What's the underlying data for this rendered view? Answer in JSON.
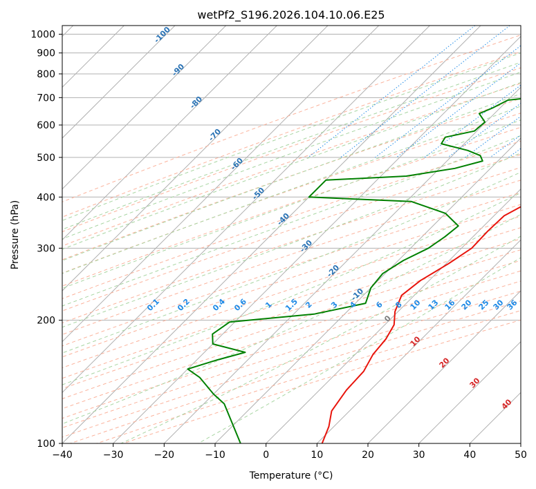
{
  "chart_data": {
    "type": "line",
    "subtype": "skew-t log-p diagram",
    "title": "wetPf2_S196.2026.104.10.06.E25",
    "xlabel": "Temperature (°C)",
    "ylabel": "Pressure (hPa)",
    "xlim": [
      -40,
      50
    ],
    "ylim": [
      1050,
      100
    ],
    "x_ticks": [
      -40,
      -30,
      -20,
      -10,
      0,
      10,
      20,
      30,
      40,
      50
    ],
    "y_ticks": [
      1000,
      900,
      800,
      700,
      600,
      500,
      400,
      300,
      200,
      100
    ],
    "grid": true,
    "series": [
      {
        "name": "Temperature",
        "color": "#e8140c",
        "points": [
          {
            "p": 835,
            "t": 1.5
          },
          {
            "p": 790,
            "t": -0.5
          },
          {
            "p": 745,
            "t": -2.2
          },
          {
            "p": 705,
            "t": -2.3
          },
          {
            "p": 675,
            "t": -1.3
          },
          {
            "p": 645,
            "t": 0.1
          },
          {
            "p": 615,
            "t": 1.0
          },
          {
            "p": 580,
            "t": 3.0
          },
          {
            "p": 550,
            "t": 5.0
          },
          {
            "p": 520,
            "t": 5.8
          },
          {
            "p": 490,
            "t": 7.0
          },
          {
            "p": 465,
            "t": 8.3
          },
          {
            "p": 440,
            "t": 7.5
          },
          {
            "p": 415,
            "t": 6.0
          },
          {
            "p": 385,
            "t": 4.0
          },
          {
            "p": 360,
            "t": 2.0
          },
          {
            "p": 330,
            "t": 1.8
          },
          {
            "p": 300,
            "t": 2.0
          },
          {
            "p": 275,
            "t": 0.5
          },
          {
            "p": 250,
            "t": -1.7
          },
          {
            "p": 230,
            "t": -2.5
          },
          {
            "p": 210,
            "t": -0.6
          },
          {
            "p": 195,
            "t": 1.8
          },
          {
            "p": 180,
            "t": 3.0
          },
          {
            "p": 165,
            "t": 3.5
          },
          {
            "p": 150,
            "t": 5.0
          },
          {
            "p": 135,
            "t": 5.3
          },
          {
            "p": 120,
            "t": 6.5
          },
          {
            "p": 110,
            "t": 9.0
          },
          {
            "p": 100,
            "t": 11.0
          }
        ]
      },
      {
        "name": "Dewpoint",
        "color": "#008000",
        "points": [
          {
            "p": 835,
            "t": -2.5
          },
          {
            "p": 800,
            "t": -3.5
          },
          {
            "p": 770,
            "t": -4.2
          },
          {
            "p": 745,
            "t": -6.5
          },
          {
            "p": 725,
            "t": -9.0
          },
          {
            "p": 710,
            "t": -11.5
          },
          {
            "p": 690,
            "t": -20.0
          },
          {
            "p": 660,
            "t": -21.5
          },
          {
            "p": 640,
            "t": -23.0
          },
          {
            "p": 610,
            "t": -20.2
          },
          {
            "p": 580,
            "t": -20.5
          },
          {
            "p": 560,
            "t": -25.0
          },
          {
            "p": 540,
            "t": -24.5
          },
          {
            "p": 520,
            "t": -18.0
          },
          {
            "p": 505,
            "t": -14.5
          },
          {
            "p": 490,
            "t": -13.0
          },
          {
            "p": 470,
            "t": -17.0
          },
          {
            "p": 450,
            "t": -25.0
          },
          {
            "p": 440,
            "t": -40.0
          },
          {
            "p": 400,
            "t": -40.0
          },
          {
            "p": 390,
            "t": -19.0
          },
          {
            "p": 365,
            "t": -10.0
          },
          {
            "p": 340,
            "t": -5.0
          },
          {
            "p": 320,
            "t": -5.5
          },
          {
            "p": 300,
            "t": -6.5
          },
          {
            "p": 280,
            "t": -9.0
          },
          {
            "p": 260,
            "t": -10.5
          },
          {
            "p": 240,
            "t": -10.0
          },
          {
            "p": 220,
            "t": -8.0
          },
          {
            "p": 207,
            "t": -16.0
          },
          {
            "p": 198,
            "t": -31.0
          },
          {
            "p": 185,
            "t": -32.0
          },
          {
            "p": 175,
            "t": -30.0
          },
          {
            "p": 167,
            "t": -22.0
          },
          {
            "p": 160,
            "t": -26.0
          },
          {
            "p": 152,
            "t": -30.0
          },
          {
            "p": 145,
            "t": -26.0
          },
          {
            "p": 132,
            "t": -20.0
          },
          {
            "p": 125,
            "t": -16.0
          },
          {
            "p": 100,
            "t": -5.0
          }
        ]
      }
    ],
    "dry_adiabat_labels": [
      "-100",
      "-90",
      "-80",
      "-70",
      "-60",
      "-50",
      "-40",
      "-30",
      "-20",
      "-10"
    ],
    "moist_adiabat_labels": [
      "0",
      "10",
      "20",
      "30",
      "40"
    ],
    "mixing_ratio_labels": [
      "0.1",
      "0.2",
      "0.4",
      "0.6",
      "1",
      "1.5",
      "2",
      "3",
      "4",
      "6",
      "8",
      "10",
      "13",
      "16",
      "20",
      "25",
      "30",
      "36"
    ]
  }
}
